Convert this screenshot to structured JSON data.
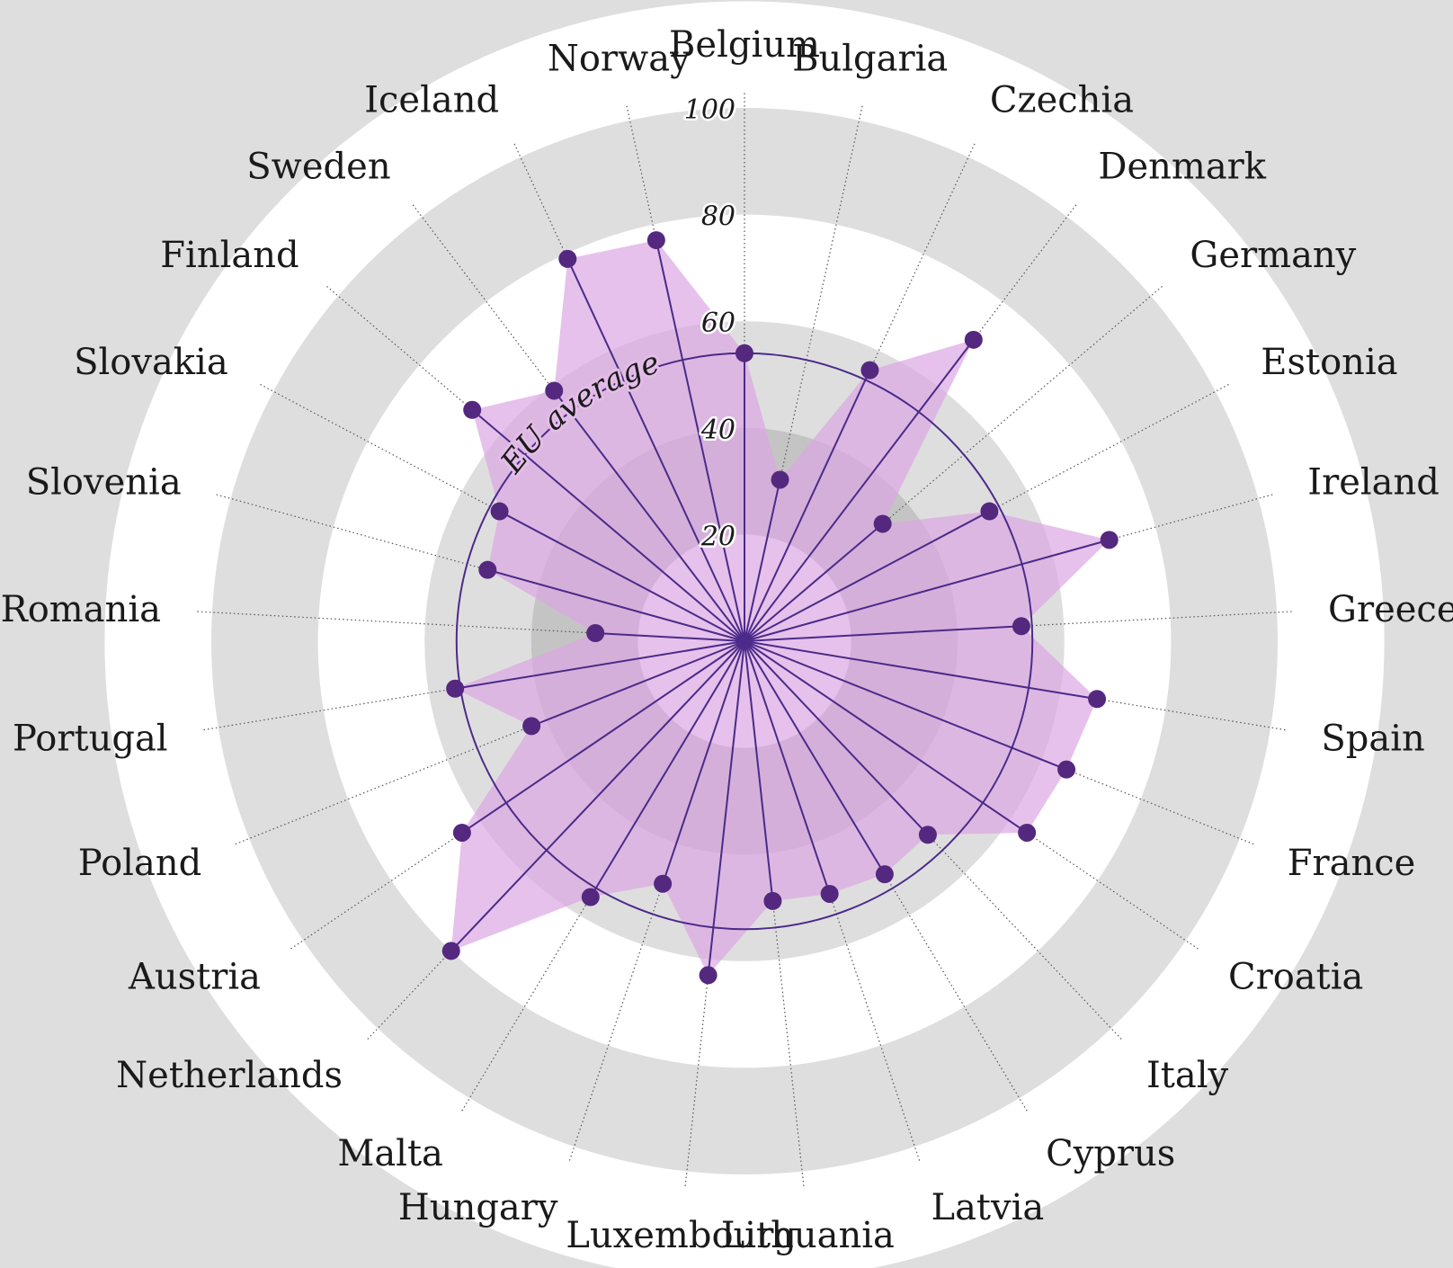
{
  "chart_data": {
    "type": "radar",
    "title": "",
    "rlim": [
      0,
      100
    ],
    "rticks": [
      "20",
      "40",
      "60",
      "80",
      "100"
    ],
    "reference_label": "EU average",
    "reference_value": 54,
    "categories": [
      "Belgium",
      "Bulgaria",
      "Czechia",
      "Denmark",
      "Germany",
      "Estonia",
      "Ireland",
      "Greece",
      "Spain",
      "France",
      "Croatia",
      "Italy",
      "Cyprus",
      "Latvia",
      "Lithuania",
      "Luxembourg",
      "Hungary",
      "Malta",
      "Netherlands",
      "Austria",
      "Poland",
      "Portugal",
      "Romania",
      "Slovenia",
      "Slovakia",
      "Finland",
      "Sweden",
      "Iceland",
      "Norway"
    ],
    "values": [
      54,
      31,
      56,
      71,
      34,
      52,
      71,
      52,
      67,
      65,
      64,
      50,
      51,
      50,
      49,
      63,
      48,
      56,
      80,
      64,
      43,
      55,
      28,
      50,
      52,
      67,
      59,
      79,
      77
    ],
    "colors": {
      "background": "#dedede",
      "band_light": "#ffffff",
      "band_dark": "#dedede",
      "inner_dark": "#c4c4c4",
      "fill": "#dca6e3",
      "fill_opacity": 0.7,
      "line": "#4b2a8a",
      "marker": "#55287f"
    }
  }
}
